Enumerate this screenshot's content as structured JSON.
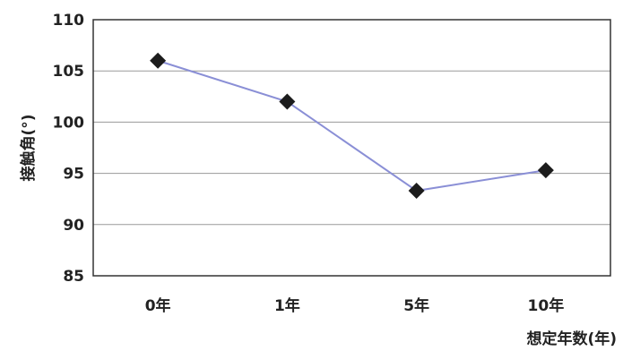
{
  "chart_data": {
    "type": "line",
    "categories": [
      "0年",
      "1年",
      "5年",
      "10年"
    ],
    "series": [
      {
        "values": [
          106,
          102,
          93.3,
          95.3
        ],
        "color": "#8a8fd6",
        "marker": "diamond"
      }
    ],
    "ylabel": "接触角(°)",
    "xlabel": "想定年数(年)",
    "ylim": [
      85,
      110
    ],
    "yticks": [
      "85",
      "90",
      "95",
      "100",
      "105",
      "110"
    ],
    "grid": true
  }
}
